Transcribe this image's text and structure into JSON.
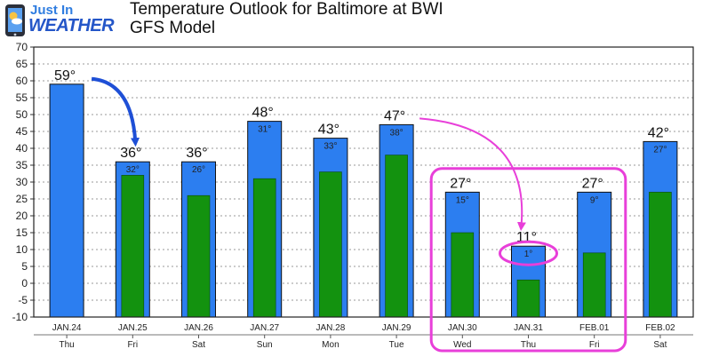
{
  "logo": {
    "line1": "Just In",
    "line2": "WEATHER"
  },
  "title": "Temperature Outlook for Baltimore at BWI",
  "subtitle": "GFS Model",
  "colors": {
    "high_bar": "#2c7ef0",
    "low_bar": "#13920f",
    "arrow_blue": "#1e4fd6",
    "highlight": "#e83fd9"
  },
  "chart_data": {
    "type": "bar",
    "title": "Temperature Outlook for Baltimore at BWI",
    "subtitle": "GFS Model",
    "categories": [
      "JAN.24",
      "JAN.25",
      "JAN.26",
      "JAN.27",
      "JAN.28",
      "JAN.29",
      "JAN.30",
      "JAN.31",
      "FEB.01",
      "FEB.02"
    ],
    "days": [
      "Thu",
      "Fri",
      "Sat",
      "Sun",
      "Mon",
      "Tue",
      "Wed",
      "Thu",
      "Fri",
      "Sat"
    ],
    "series": [
      {
        "values": [
          59,
          36,
          36,
          48,
          43,
          47,
          27,
          11,
          27,
          42
        ],
        "labels": [
          "59°",
          "36°",
          "36°",
          "48°",
          "43°",
          "47°",
          "27°",
          "11°",
          "27°",
          "42°"
        ],
        "color": "#2c7ef0"
      },
      {
        "values": [
          null,
          32,
          26,
          31,
          33,
          38,
          15,
          1,
          9,
          27
        ],
        "labels": [
          "",
          "32°",
          "26°",
          "31°",
          "33°",
          "38°",
          "15°",
          "1°",
          "9°",
          "27°"
        ],
        "color": "#13920f"
      }
    ],
    "ylim": [
      -10,
      70
    ],
    "yticks": [
      -10,
      -5,
      0,
      5,
      10,
      15,
      20,
      25,
      30,
      35,
      40,
      45,
      50,
      55,
      60,
      65,
      70
    ],
    "grid": true,
    "highlighted_categories": [
      "JAN.30",
      "JAN.31",
      "FEB.01"
    ],
    "circled_label": "1°"
  }
}
